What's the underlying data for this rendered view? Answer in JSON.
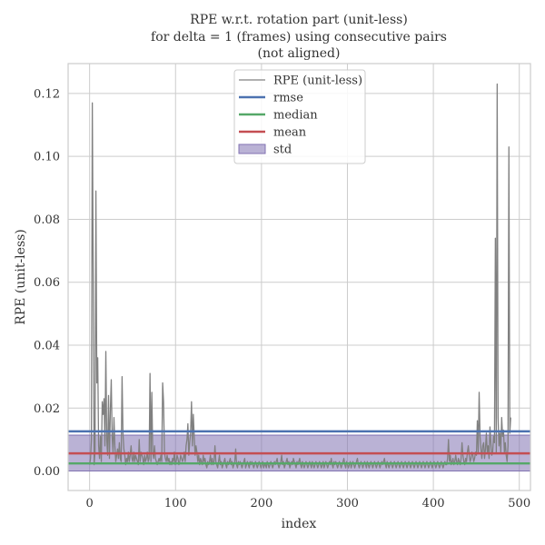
{
  "chart_data": {
    "type": "line",
    "title_lines": [
      "RPE w.r.t. rotation part (unit-less)",
      "for delta = 1 (frames) using consecutive pairs",
      "(not aligned)"
    ],
    "xlabel": "index",
    "ylabel": "RPE (unit-less)",
    "xlim": [
      -25,
      513
    ],
    "ylim": [
      -0.0062,
      0.1295
    ],
    "x_ticks": [
      0,
      100,
      200,
      300,
      400,
      500
    ],
    "y_ticks": [
      0.0,
      0.02,
      0.04,
      0.06,
      0.08,
      0.1,
      0.12
    ],
    "y_tick_labels": [
      "0.00",
      "0.02",
      "0.04",
      "0.06",
      "0.08",
      "0.10",
      "0.12"
    ],
    "grid": true,
    "legend_position": "top-center",
    "legend": [
      {
        "key": "rpe",
        "label": "RPE (unit-less)",
        "style": "thin-line",
        "color": "#808080"
      },
      {
        "key": "rmse",
        "label": "rmse",
        "style": "line",
        "color": "#4c72b0"
      },
      {
        "key": "median",
        "label": "median",
        "style": "line",
        "color": "#55a868"
      },
      {
        "key": "mean",
        "label": "mean",
        "style": "line",
        "color": "#c44e52"
      },
      {
        "key": "std",
        "label": "std",
        "style": "band",
        "color": "#8172b2"
      }
    ],
    "stats": {
      "rmse": 0.0126,
      "median": 0.0024,
      "mean": 0.0056,
      "std_lower": 0.0,
      "std_upper": 0.0114
    },
    "series": [
      {
        "key": "rpe",
        "x_start": 0,
        "x_end": 490,
        "values": [
          0.002,
          0.004,
          0.01,
          0.117,
          0.062,
          0.002,
          0.006,
          0.089,
          0.028,
          0.036,
          0.008,
          0.004,
          0.011,
          0.003,
          0.022,
          0.018,
          0.023,
          0.008,
          0.038,
          0.01,
          0.005,
          0.024,
          0.004,
          0.019,
          0.029,
          0.011,
          0.006,
          0.017,
          0.008,
          0.003,
          0.005,
          0.007,
          0.004,
          0.009,
          0.004,
          0.003,
          0.03,
          0.012,
          0.007,
          0.005,
          0.002,
          0.004,
          0.003,
          0.006,
          0.003,
          0.005,
          0.008,
          0.004,
          0.003,
          0.006,
          0.003,
          0.005,
          0.004,
          0.003,
          0.002,
          0.01,
          0.003,
          0.006,
          0.005,
          0.004,
          0.002,
          0.005,
          0.003,
          0.004,
          0.006,
          0.003,
          0.004,
          0.031,
          0.003,
          0.025,
          0.006,
          0.004,
          0.008,
          0.004,
          0.003,
          0.002,
          0.003,
          0.004,
          0.003,
          0.005,
          0.003,
          0.028,
          0.022,
          0.006,
          0.004,
          0.003,
          0.005,
          0.003,
          0.004,
          0.002,
          0.003,
          0.002,
          0.004,
          0.003,
          0.006,
          0.002,
          0.003,
          0.005,
          0.004,
          0.002,
          0.003,
          0.005,
          0.004,
          0.003,
          0.004,
          0.006,
          0.003,
          0.008,
          0.01,
          0.015,
          0.005,
          0.009,
          0.012,
          0.022,
          0.008,
          0.018,
          0.011,
          0.005,
          0.008,
          0.006,
          0.003,
          0.005,
          0.002,
          0.004,
          0.003,
          0.002,
          0.005,
          0.003,
          0.004,
          0.002,
          0.001,
          0.003,
          0.002,
          0.003,
          0.005,
          0.002,
          0.004,
          0.002,
          0.003,
          0.008,
          0.003,
          0.002,
          0.001,
          0.003,
          0.005,
          0.002,
          0.003,
          0.001,
          0.002,
          0.003,
          0.004,
          0.002,
          0.001,
          0.003,
          0.002,
          0.003,
          0.004,
          0.002,
          0.003,
          0.001,
          0.002,
          0.003,
          0.007,
          0.002,
          0.001,
          0.003,
          0.002,
          0.003,
          0.002,
          0.001,
          0.002,
          0.003,
          0.004,
          0.001,
          0.002,
          0.003,
          0.002,
          0.001,
          0.003,
          0.002,
          0.003,
          0.002,
          0.001,
          0.002,
          0.003,
          0.002,
          0.001,
          0.002,
          0.003,
          0.002,
          0.001,
          0.002,
          0.003,
          0.001,
          0.002,
          0.002,
          0.001,
          0.003,
          0.002,
          0.001,
          0.002,
          0.003,
          0.002,
          0.001,
          0.002,
          0.003,
          0.002,
          0.003,
          0.004,
          0.002,
          0.001,
          0.002,
          0.003,
          0.005,
          0.002,
          0.003,
          0.001,
          0.002,
          0.003,
          0.004,
          0.002,
          0.003,
          0.001,
          0.002,
          0.003,
          0.002,
          0.004,
          0.003,
          0.002,
          0.001,
          0.003,
          0.002,
          0.003,
          0.004,
          0.002,
          0.001,
          0.003,
          0.002,
          0.001,
          0.002,
          0.003,
          0.002,
          0.001,
          0.002,
          0.003,
          0.002,
          0.001,
          0.003,
          0.002,
          0.001,
          0.002,
          0.003,
          0.002,
          0.001,
          0.002,
          0.003,
          0.002,
          0.001,
          0.002,
          0.003,
          0.001,
          0.002,
          0.003,
          0.002,
          0.001,
          0.002,
          0.003,
          0.002,
          0.004,
          0.002,
          0.001,
          0.003,
          0.002,
          0.003,
          0.002,
          0.001,
          0.002,
          0.003,
          0.002,
          0.001,
          0.002,
          0.003,
          0.004,
          0.002,
          0.001,
          0.003,
          0.002,
          0.001,
          0.002,
          0.003,
          0.001,
          0.002,
          0.003,
          0.002,
          0.001,
          0.002,
          0.003,
          0.004,
          0.002,
          0.001,
          0.002,
          0.003,
          0.002,
          0.001,
          0.002,
          0.003,
          0.002,
          0.001,
          0.003,
          0.002,
          0.001,
          0.002,
          0.003,
          0.002,
          0.001,
          0.002,
          0.003,
          0.002,
          0.001,
          0.002,
          0.003,
          0.002,
          0.001,
          0.002,
          0.003,
          0.002,
          0.003,
          0.004,
          0.002,
          0.001,
          0.003,
          0.002,
          0.001,
          0.002,
          0.003,
          0.002,
          0.001,
          0.002,
          0.003,
          0.002,
          0.001,
          0.002,
          0.003,
          0.002,
          0.001,
          0.002,
          0.003,
          0.002,
          0.001,
          0.002,
          0.003,
          0.002,
          0.001,
          0.002,
          0.003,
          0.002,
          0.001,
          0.002,
          0.003,
          0.002,
          0.001,
          0.002,
          0.003,
          0.002,
          0.001,
          0.002,
          0.003,
          0.002,
          0.001,
          0.002,
          0.003,
          0.002,
          0.001,
          0.002,
          0.003,
          0.002,
          0.001,
          0.002,
          0.003,
          0.002,
          0.001,
          0.002,
          0.003,
          0.002,
          0.001,
          0.002,
          0.003,
          0.002,
          0.001,
          0.002,
          0.003,
          0.002,
          0.001,
          0.002,
          0.003,
          0.002,
          0.002,
          0.004,
          0.01,
          0.003,
          0.005,
          0.002,
          0.003,
          0.004,
          0.002,
          0.003,
          0.005,
          0.003,
          0.002,
          0.004,
          0.003,
          0.002,
          0.004,
          0.009,
          0.005,
          0.003,
          0.002,
          0.004,
          0.003,
          0.006,
          0.008,
          0.005,
          0.003,
          0.004,
          0.006,
          0.005,
          0.003,
          0.004,
          0.006,
          0.005,
          0.016,
          0.006,
          0.025,
          0.011,
          0.007,
          0.004,
          0.008,
          0.009,
          0.004,
          0.007,
          0.012,
          0.006,
          0.008,
          0.004,
          0.014,
          0.009,
          0.005,
          0.006,
          0.011,
          0.009,
          0.074,
          0.006,
          0.123,
          0.017,
          0.008,
          0.012,
          0.006,
          0.017,
          0.011,
          0.013,
          0.006,
          0.009,
          0.005,
          0.003,
          0.008,
          0.103,
          0.012,
          0.017
        ]
      }
    ]
  }
}
